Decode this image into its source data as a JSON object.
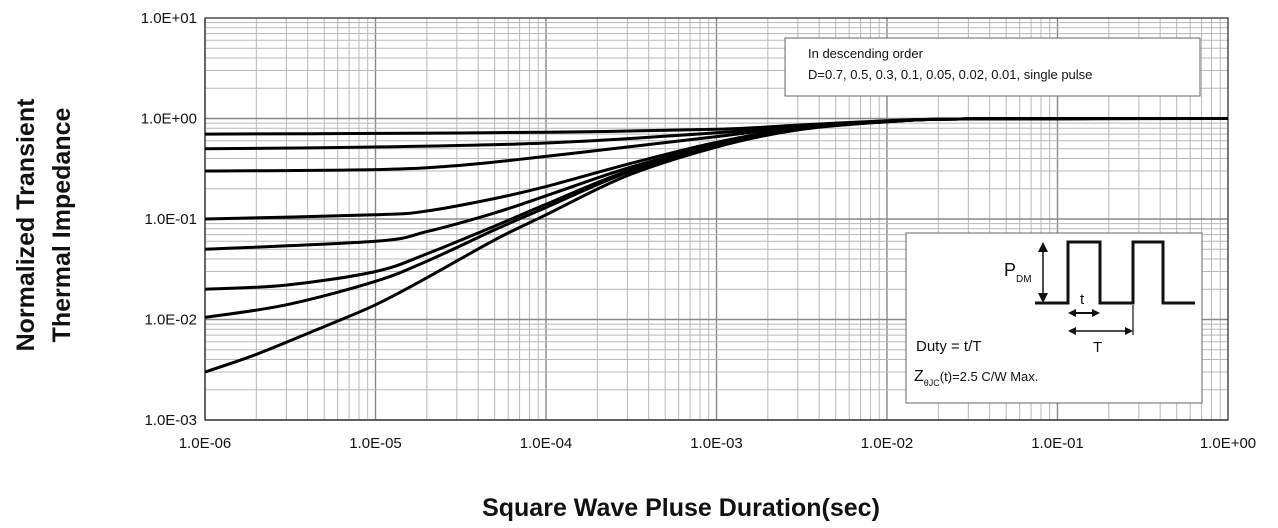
{
  "chart_data": {
    "type": "line",
    "title": "",
    "xlabel": "Square Wave Pluse Duration(sec)",
    "ylabel_lines": [
      "Normalized  Transient",
      "Thermal Impedance"
    ],
    "x_scale": "log",
    "y_scale": "log",
    "xlim": [
      1e-06,
      1
    ],
    "ylim": [
      0.001,
      10
    ],
    "x_tick_labels": [
      "1.0E-06",
      "1.0E-05",
      "1.0E-04",
      "1.0E-03",
      "1.0E-02",
      "1.0E-01",
      "1.0E+00"
    ],
    "y_tick_labels": [
      "1.0E+01",
      "1.0E+00",
      "1.0E-01",
      "1.0E-02",
      "1.0E-03"
    ],
    "grid": true,
    "series": [
      {
        "name": "D=0.7",
        "x": [
          1e-06,
          1e-05,
          0.0001,
          0.001,
          0.003,
          0.01,
          0.03,
          1
        ],
        "y": [
          0.7,
          0.71,
          0.73,
          0.78,
          0.86,
          0.95,
          0.99,
          1.0
        ]
      },
      {
        "name": "D=0.5",
        "x": [
          1e-06,
          1e-05,
          0.0001,
          0.001,
          0.003,
          0.01,
          0.03,
          1
        ],
        "y": [
          0.5,
          0.52,
          0.57,
          0.72,
          0.84,
          0.94,
          0.99,
          1.0
        ]
      },
      {
        "name": "D=0.3",
        "x": [
          1e-06,
          1e-05,
          3e-05,
          0.0001,
          0.0003,
          0.001,
          0.003,
          0.01,
          0.03,
          1
        ],
        "y": [
          0.3,
          0.31,
          0.34,
          0.42,
          0.52,
          0.66,
          0.82,
          0.94,
          0.99,
          1.0
        ]
      },
      {
        "name": "D=0.1",
        "x": [
          1e-06,
          1e-05,
          2e-05,
          5e-05,
          0.0001,
          0.0003,
          0.001,
          0.003,
          0.01,
          0.03,
          1
        ],
        "y": [
          0.1,
          0.11,
          0.12,
          0.16,
          0.21,
          0.35,
          0.58,
          0.8,
          0.93,
          0.99,
          1.0
        ]
      },
      {
        "name": "D=0.05",
        "x": [
          1e-06,
          1e-05,
          2e-05,
          5e-05,
          0.0001,
          0.0003,
          0.001,
          0.003,
          0.01,
          0.03,
          1
        ],
        "y": [
          0.05,
          0.06,
          0.075,
          0.115,
          0.17,
          0.32,
          0.55,
          0.79,
          0.93,
          0.99,
          1.0
        ]
      },
      {
        "name": "D=0.02",
        "x": [
          1e-06,
          3e-06,
          1e-05,
          2e-05,
          5e-05,
          0.0001,
          0.0003,
          0.001,
          0.003,
          0.01,
          0.03,
          1
        ],
        "y": [
          0.02,
          0.022,
          0.03,
          0.045,
          0.085,
          0.14,
          0.3,
          0.54,
          0.78,
          0.93,
          0.99,
          1.0
        ]
      },
      {
        "name": "D=0.01",
        "x": [
          1e-06,
          3e-06,
          1e-05,
          2e-05,
          5e-05,
          0.0001,
          0.0003,
          0.001,
          0.003,
          0.01,
          0.03,
          1
        ],
        "y": [
          0.0105,
          0.014,
          0.024,
          0.038,
          0.078,
          0.13,
          0.29,
          0.53,
          0.78,
          0.93,
          0.99,
          1.0
        ]
      },
      {
        "name": "single pulse",
        "x": [
          1e-06,
          2e-06,
          5e-06,
          1e-05,
          2e-05,
          5e-05,
          0.0001,
          0.0003,
          0.001,
          0.003,
          0.01,
          0.03,
          1
        ],
        "y": [
          0.003,
          0.0045,
          0.0085,
          0.014,
          0.026,
          0.062,
          0.11,
          0.27,
          0.52,
          0.77,
          0.93,
          0.99,
          1.0
        ]
      }
    ],
    "legend": {
      "position": "top-right",
      "lines": [
        "In descending order",
        "D=0.7, 0.5, 0.3, 0.1, 0.05, 0.02, 0.01, single pulse"
      ]
    },
    "inset": {
      "position": "bottom-right",
      "pdm_label": "P",
      "pdm_sub": "DM",
      "t_label": "t",
      "T_label": "T",
      "duty": "Duty = t/T",
      "z_prefix": "Z",
      "z_sub": "θJC",
      "z_suffix": "(t)=2.5 C/W Max."
    }
  }
}
